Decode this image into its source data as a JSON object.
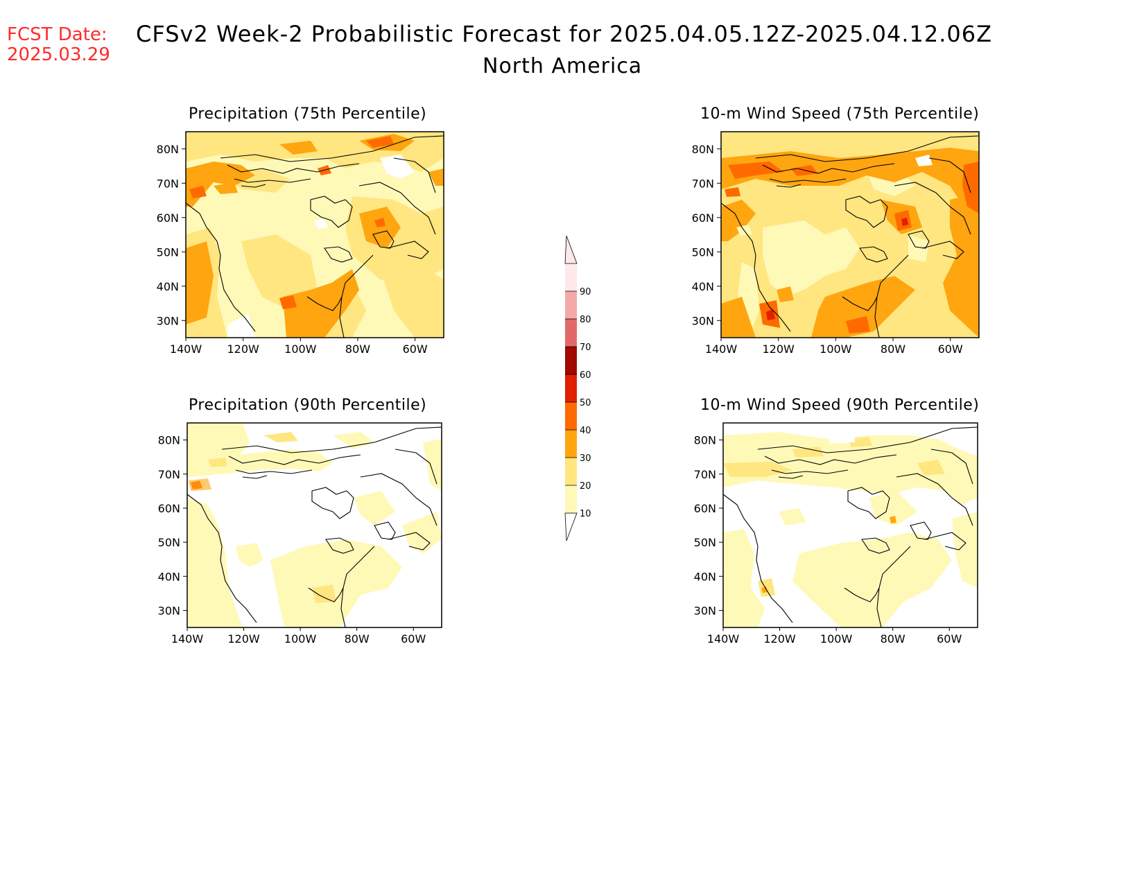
{
  "header": {
    "fcst_label": "FCST Date:",
    "fcst_date": "2025.03.29",
    "title": "CFSv2 Week-2 Probabilistic Forecast for 2025.04.05.12Z-2025.04.12.06Z",
    "subtitle": "North America"
  },
  "colors": {
    "c10": "#fff9b8",
    "c20": "#ffe680",
    "c30": "#ffa510",
    "c40": "#ff6a00",
    "c50": "#e02000",
    "c60": "#a00800",
    "c70": "#e06a6a",
    "c80": "#f4a8a8",
    "c90": "#ffe8ea"
  },
  "colorbar": {
    "levels": [
      "10",
      "20",
      "30",
      "40",
      "50",
      "60",
      "70",
      "80",
      "90"
    ]
  },
  "axis_ticks": {
    "lat": [
      "80N",
      "70N",
      "60N",
      "50N",
      "40N",
      "30N"
    ],
    "lon": [
      "140W",
      "120W",
      "100W",
      "80W",
      "60W"
    ]
  },
  "panels": [
    {
      "id": "precip75",
      "title": "Precipitation (75th Percentile)"
    },
    {
      "id": "wind75",
      "title": "10-m Wind Speed (75th Percentile)"
    },
    {
      "id": "precip90",
      "title": "Precipitation (90th Percentile)"
    },
    {
      "id": "wind90",
      "title": "10-m Wind Speed (90th Percentile)"
    }
  ]
}
